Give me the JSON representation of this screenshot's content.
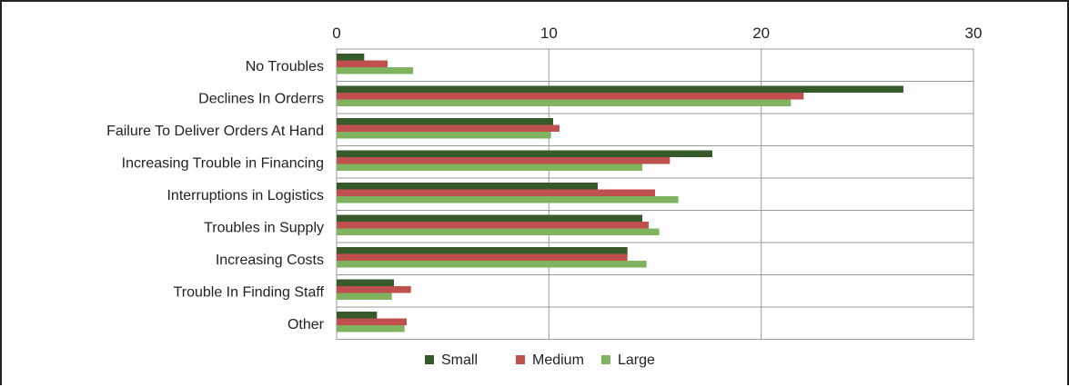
{
  "chart_data": {
    "type": "bar",
    "orientation": "horizontal",
    "title": "",
    "xlabel": "",
    "ylabel": "",
    "xlim": [
      0,
      30
    ],
    "xticks": [
      0,
      10,
      20,
      30
    ],
    "grid": true,
    "legend_position": "bottom",
    "categories": [
      "No Troubles",
      "Declines In Orderrs",
      "Failure To Deliver Orders At Hand",
      "Increasing Trouble in Financing",
      "Interruptions in Logistics",
      "Troubles in Supply",
      "Increasing Costs",
      "Trouble In Finding Staff",
      "Other"
    ],
    "series": [
      {
        "name": "Small",
        "color": "#375a2a",
        "values": [
          1.3,
          26.7,
          10.2,
          17.7,
          12.3,
          14.4,
          13.7,
          2.7,
          1.9
        ]
      },
      {
        "name": "Medium",
        "color": "#c0504d",
        "values": [
          2.4,
          22.0,
          10.5,
          15.7,
          15.0,
          14.7,
          13.7,
          3.5,
          3.3
        ]
      },
      {
        "name": "Large",
        "color": "#7fb360",
        "values": [
          3.6,
          21.4,
          10.1,
          14.4,
          16.1,
          15.2,
          14.6,
          2.6,
          3.2
        ]
      }
    ]
  }
}
